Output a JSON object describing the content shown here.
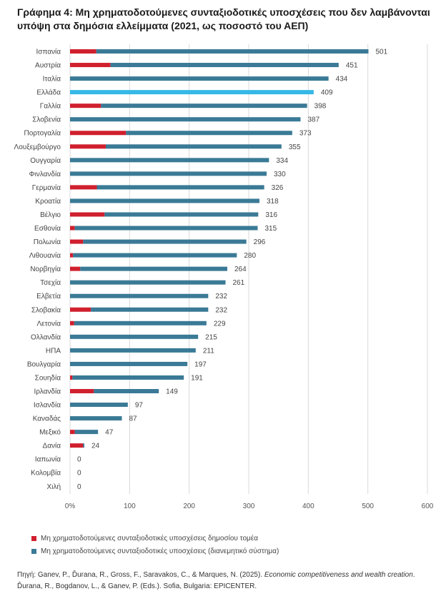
{
  "header": {
    "title_line1": "Γράφημα 4: Μη χρηματοδοτούμενες συνταξιοδοτικές υποσχέσεις που δεν λαμβάνονται",
    "title_line2": "υπόψη στα δημόσια ελλείμματα (2021, ως ποσοστό του ΑΕΠ)"
  },
  "colors": {
    "public": "#d0202e",
    "distributive": "#3a7a96",
    "highlight": "#35b8e6",
    "grid": "#d9d9d9"
  },
  "chart_data": {
    "type": "bar",
    "orientation": "horizontal",
    "stacked": true,
    "categories": [
      "Ισπανία",
      "Αυστρία",
      "Ιταλία",
      "Ελλάδα",
      "Γαλλία",
      "Σλοβενία",
      "Πορτογαλία",
      "Λουξεμβούργο",
      "Ουγγαρία",
      "Φινλανδία",
      "Γερμανία",
      "Κροατία",
      "Βέλγιο",
      "Εσθονία",
      "Πολωνία",
      "Λιθουανία",
      "Νορβηγία",
      "Τσεχία",
      "Ελβετία",
      "Σλοβακία",
      "Λετονία",
      "Ολλανδία",
      "ΗΠΑ",
      "Βουλγαρία",
      "Σουηδία",
      "Ιρλανδία",
      "Ισλανδία",
      "Καναδάς",
      "Μεξικό",
      "Δανία",
      "Ιαπωνία",
      "Κολομβία",
      "Χιλή"
    ],
    "totals": [
      501,
      451,
      434,
      409,
      398,
      387,
      373,
      355,
      334,
      330,
      326,
      318,
      316,
      315,
      296,
      280,
      264,
      261,
      232,
      232,
      229,
      215,
      211,
      197,
      191,
      149,
      97,
      87,
      47,
      24,
      0,
      0,
      0
    ],
    "series": [
      {
        "name": "Μη χρηματοδοτούμενες συνταξιοδοτικές υποσχέσεις δημοσίου τομέα",
        "values": [
          44,
          68,
          0,
          0,
          52,
          0,
          94,
          60,
          0,
          0,
          45,
          0,
          58,
          8,
          22,
          5,
          17,
          0,
          0,
          35,
          7,
          0,
          0,
          0,
          4,
          40,
          0,
          0,
          8,
          22,
          0,
          0,
          0
        ]
      },
      {
        "name": "Μη χρηματοδοτούμενες συνταξιοδοτικές υποσχέσεις (διανεμητικό σύστημα)",
        "values": [
          457,
          383,
          434,
          409,
          346,
          387,
          279,
          295,
          334,
          330,
          281,
          318,
          258,
          307,
          274,
          275,
          247,
          261,
          232,
          197,
          222,
          215,
          211,
          197,
          187,
          109,
          97,
          87,
          39,
          2,
          0,
          0,
          0
        ]
      }
    ],
    "highlight_category": "Ελλάδα",
    "xlim": [
      0,
      600
    ],
    "xticks": [
      "0%",
      "100",
      "200",
      "300",
      "400",
      "500",
      "600"
    ],
    "grid": true,
    "legend_position": "bottom-left"
  },
  "legend": {
    "public_label": "Μη χρηματοδοτούμενες συνταξιοδοτικές υποσχέσεις δημοσίου τομέα",
    "distributive_label": "Μη χρηματοδοτούμενες συνταξιοδοτικές υποσχέσεις (διανεμητικό σύστημα)"
  },
  "source": {
    "prefix": "Πηγή: Ganev, P., Ďurana, R., Gross, F., Saravakos, C., & Marques, N. (2025). ",
    "title": "Economic competitiveness and wealth creation",
    "suffix": ". Ďurana, R., Bogdanov, L., & Ganev, P. (Eds.). Sofia, Bulgaria: EPICENTER."
  }
}
